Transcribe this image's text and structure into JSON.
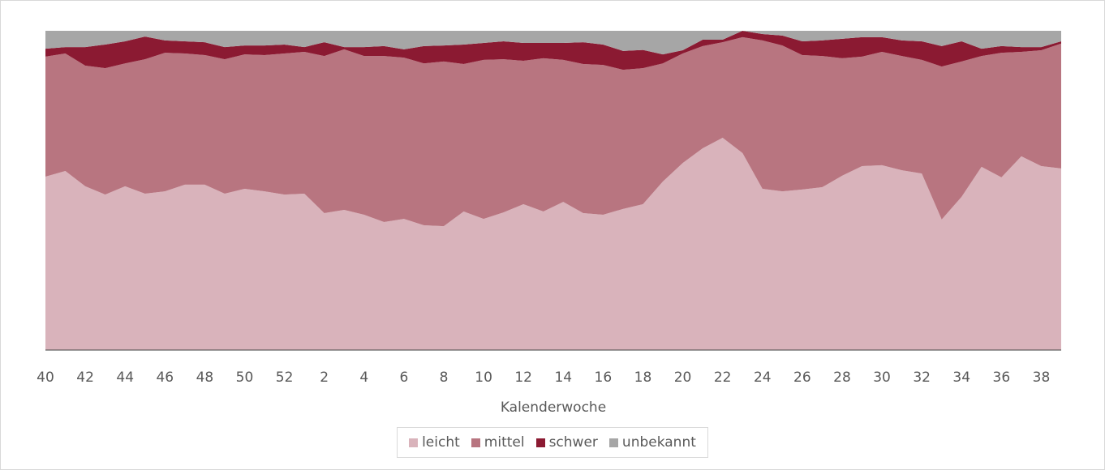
{
  "chart_data": {
    "type": "stacked-area-100",
    "x_label": "Kalenderwoche",
    "categories": [
      40,
      null,
      42,
      null,
      44,
      null,
      46,
      null,
      48,
      null,
      50,
      null,
      52,
      null,
      2,
      null,
      4,
      null,
      6,
      null,
      8,
      null,
      10,
      null,
      12,
      null,
      14,
      null,
      16,
      null,
      18,
      null,
      20,
      null,
      22,
      null,
      24,
      null,
      26,
      null,
      28,
      null,
      30,
      null,
      32,
      null,
      34,
      null,
      36,
      null,
      38,
      null
    ],
    "ylim": [
      0,
      100
    ],
    "series": [
      {
        "name": "leicht",
        "color": "#d9b3bb",
        "values": [
          54.3,
          56.1,
          51.3,
          48.7,
          51.3,
          49.0,
          49.7,
          51.8,
          51.8,
          49.0,
          50.5,
          49.7,
          48.7,
          49.0,
          42.9,
          43.9,
          42.4,
          40.1,
          41.1,
          39.1,
          38.8,
          43.4,
          41.1,
          43.1,
          45.7,
          43.4,
          46.4,
          42.9,
          42.4,
          44.2,
          45.7,
          52.8,
          58.6,
          63.2,
          66.5,
          61.7,
          50.5,
          49.7,
          50.3,
          51.0,
          54.6,
          57.6,
          57.9,
          56.3,
          55.3,
          40.9,
          48.0,
          57.4,
          54.1,
          60.7,
          57.6,
          56.9
        ]
      },
      {
        "name": "mittel",
        "color": "#b87580",
        "values": [
          37.6,
          36.8,
          37.8,
          39.6,
          38.5,
          42.1,
          43.4,
          41.1,
          40.6,
          42.1,
          42.1,
          42.7,
          44.2,
          44.4,
          49.2,
          50.3,
          49.7,
          52.0,
          50.5,
          50.7,
          51.6,
          46.2,
          49.8,
          48.0,
          44.9,
          48.0,
          44.5,
          46.7,
          46.9,
          43.6,
          42.6,
          37.0,
          34.3,
          32.0,
          29.9,
          36.3,
          46.5,
          45.7,
          42.1,
          41.1,
          36.8,
          34.3,
          35.5,
          35.8,
          35.6,
          47.9,
          42.4,
          34.7,
          39.0,
          32.7,
          36.3,
          39.1
        ]
      },
      {
        "name": "schwer",
        "color": "#8b1a32",
        "values": [
          2.5,
          2.0,
          5.8,
          7.4,
          6.9,
          7.1,
          3.9,
          3.8,
          4.0,
          3.8,
          2.8,
          3.0,
          2.8,
          1.5,
          4.3,
          0.7,
          2.8,
          3.1,
          2.6,
          5.4,
          5.0,
          6.1,
          5.3,
          5.6,
          5.6,
          4.8,
          5.3,
          6.8,
          6.4,
          5.9,
          5.7,
          2.8,
          1.0,
          2.0,
          0.8,
          2.0,
          2.0,
          3.1,
          4.3,
          4.9,
          6.1,
          6.1,
          4.6,
          4.9,
          5.8,
          6.4,
          6.3,
          2.3,
          2.1,
          1.5,
          1.0,
          0.7
        ]
      },
      {
        "name": "unbekannt",
        "color": "#a6a6a6",
        "values": [
          5.6,
          5.1,
          5.1,
          4.3,
          3.3,
          1.8,
          3.0,
          3.3,
          3.6,
          5.1,
          4.6,
          4.6,
          4.3,
          5.1,
          3.6,
          5.1,
          5.1,
          4.8,
          5.8,
          4.8,
          4.6,
          4.3,
          3.8,
          3.3,
          3.8,
          3.8,
          3.8,
          3.6,
          4.3,
          6.3,
          6.0,
          7.4,
          6.1,
          2.8,
          2.8,
          0,
          1.0,
          1.5,
          3.3,
          3.0,
          2.5,
          2.0,
          2.0,
          3.0,
          3.3,
          4.8,
          3.3,
          5.6,
          4.8,
          5.1,
          5.1,
          3.3
        ]
      }
    ]
  }
}
